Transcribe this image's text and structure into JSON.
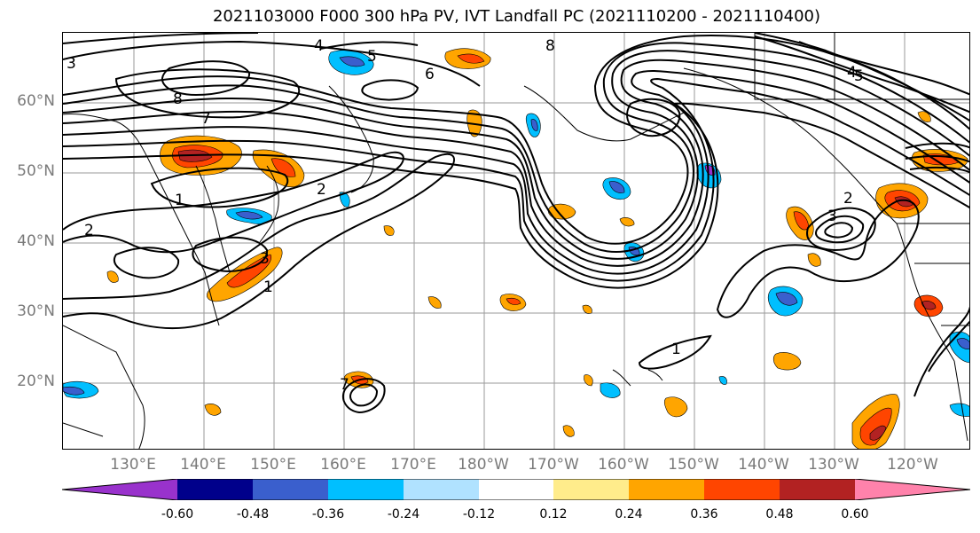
{
  "title": "2021103000 F000 300 hPa PV, IVT Landfall PC (2021110200 - 2021110400)",
  "latitude_labels": [
    "60°N",
    "50°N",
    "40°N",
    "30°N",
    "20°N"
  ],
  "longitude_labels": [
    "130°E",
    "140°E",
    "150°E",
    "160°E",
    "170°E",
    "180°W",
    "170°W",
    "160°W",
    "150°W",
    "140°W",
    "130°W",
    "120°W"
  ],
  "colorbar": {
    "colors": [
      "#9932cc",
      "#00008b",
      "#3a5fcd",
      "#00bfff",
      "#b0e2ff",
      "#ffffff",
      "#ffec8b",
      "#ffa500",
      "#ff4500",
      "#b22222",
      "#ff82ab"
    ],
    "tick_labels": [
      "-0.60",
      "-0.48",
      "-0.36",
      "-0.24",
      "-0.12",
      "0.12",
      "0.24",
      "0.36",
      "0.48",
      "0.60"
    ]
  },
  "contour_labels": [
    "1",
    "2",
    "3",
    "4",
    "5",
    "6",
    "7",
    "8"
  ]
}
